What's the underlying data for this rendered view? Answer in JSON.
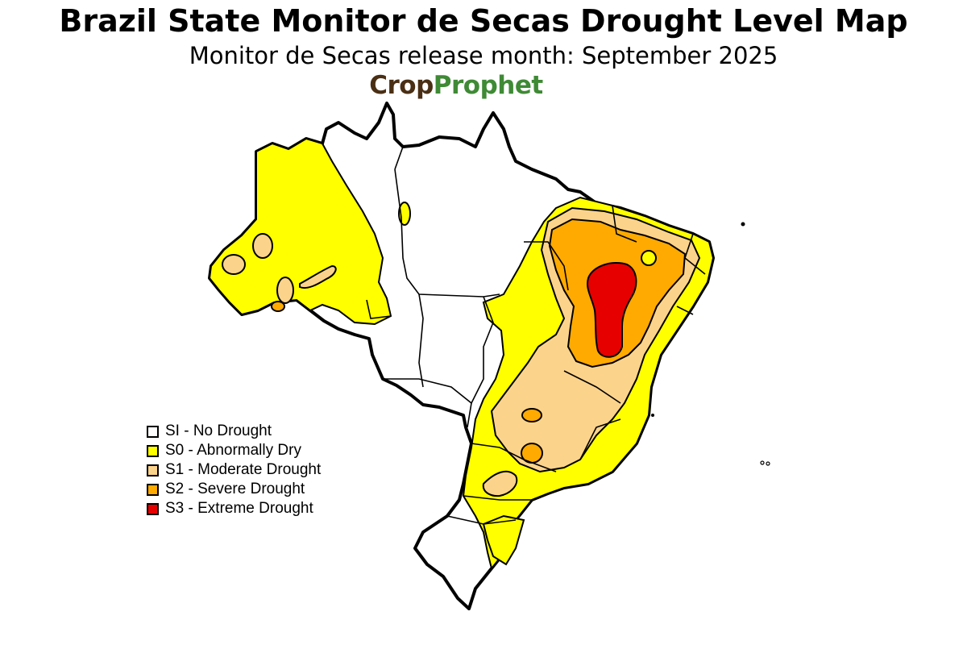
{
  "title": "Brazil State Monitor de Secas Drought Level Map",
  "subtitle": "Monitor de Secas release month: September 2025",
  "logo": {
    "part1": "Crop",
    "part2": "Prophet"
  },
  "colors": {
    "none": "#ffffff",
    "s0": "#ffff00",
    "s1": "#fcd38b",
    "s2": "#ffaa00",
    "s3": "#e60000",
    "border": "#000000",
    "logo_brown": "#4a2f14",
    "logo_green": "#3f8a35"
  },
  "legend": {
    "items": [
      {
        "code": "SI",
        "label": "SI - No Drought",
        "color": "#ffffff"
      },
      {
        "code": "S0",
        "label": "S0 - Abnormally Dry",
        "color": "#ffff00"
      },
      {
        "code": "S1",
        "label": "S1 - Moderate Drought",
        "color": "#fcd38b"
      },
      {
        "code": "S2",
        "label": "S2 - Severe Drought",
        "color": "#ffaa00"
      },
      {
        "code": "S3",
        "label": "S3 - Extreme Drought",
        "color": "#e60000"
      }
    ]
  }
}
